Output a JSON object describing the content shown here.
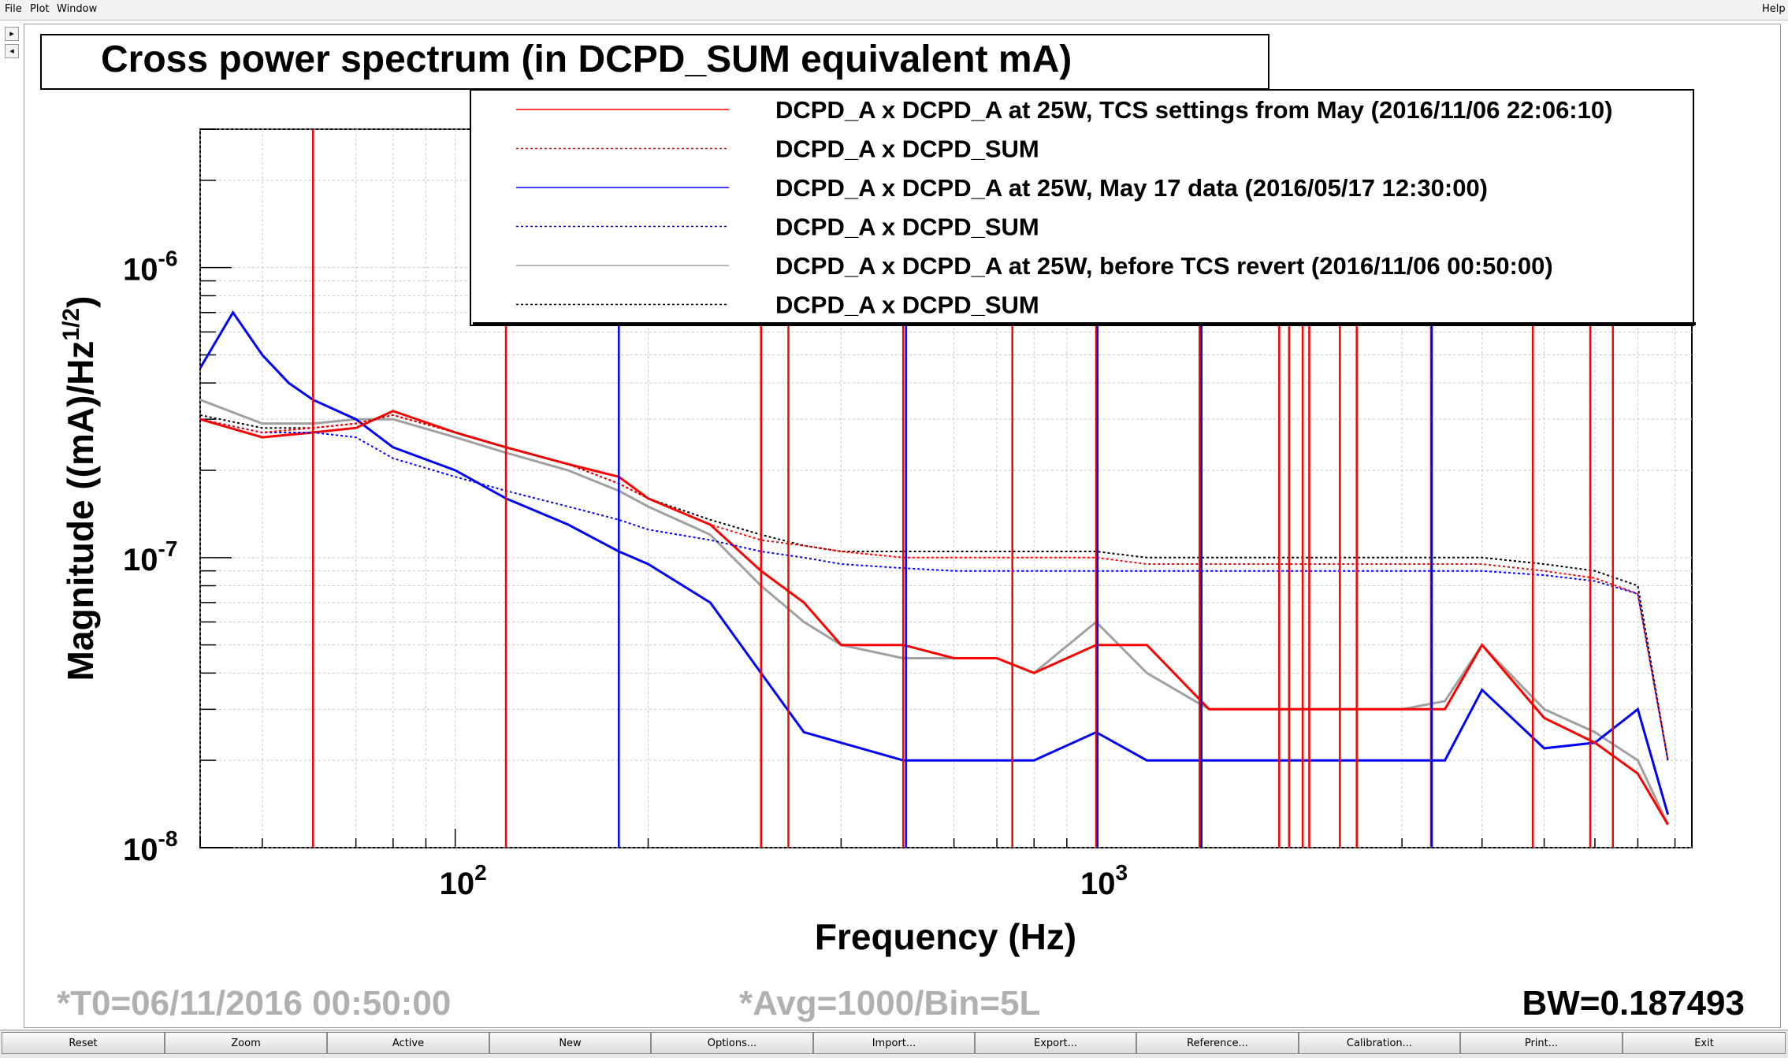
{
  "menubar": {
    "items": [
      "File",
      "Plot",
      "Window"
    ],
    "help": "Help"
  },
  "sidebar": {
    "arrow_right": "▸",
    "arrow_left": "◂"
  },
  "chart_data": {
    "type": "line",
    "title": "Cross power spectrum (in DCPD_SUM equivalent mA)",
    "xlabel": "Frequency (Hz)",
    "ylabel": "Magnitude ((mA)/Hz",
    "ylabel_sup": "1/2",
    "ylabel_end": ")",
    "x_scale": "log",
    "y_scale": "log",
    "xlim": [
      40,
      8500
    ],
    "ylim": [
      1e-08,
      3e-06
    ],
    "x_ticks": [
      {
        "value": 100,
        "base": "10",
        "exp": "2"
      },
      {
        "value": 1000,
        "base": "10",
        "exp": "3"
      }
    ],
    "y_ticks": [
      {
        "value": 1e-08,
        "base": "10",
        "exp": "-8"
      },
      {
        "value": 1e-07,
        "base": "10",
        "exp": "-7"
      },
      {
        "value": 1e-06,
        "base": "10",
        "exp": "-6"
      }
    ],
    "grid": true,
    "legend_position": "top-right",
    "series": [
      {
        "name": "DCPD_A x DCPD_A at 25W, TCS settings from May (2016/11/06 22:06:10)",
        "color": "#ff0000",
        "style": "solid",
        "x": [
          40,
          50,
          60,
          70,
          80,
          100,
          120,
          150,
          180,
          200,
          250,
          300,
          350,
          400,
          500,
          600,
          700,
          800,
          1000,
          1200,
          1500,
          2000,
          2500,
          3000,
          3500,
          4000,
          5000,
          6000,
          7000,
          7800
        ],
        "y": [
          3e-07,
          2.6e-07,
          2.7e-07,
          2.8e-07,
          3.2e-07,
          2.7e-07,
          2.4e-07,
          2.1e-07,
          1.9e-07,
          1.6e-07,
          1.3e-07,
          9e-08,
          7e-08,
          5e-08,
          5e-08,
          4.5e-08,
          4.5e-08,
          4e-08,
          5e-08,
          5e-08,
          3e-08,
          3e-08,
          3e-08,
          3e-08,
          3e-08,
          5e-08,
          2.8e-08,
          2.3e-08,
          1.8e-08,
          1.2e-08
        ]
      },
      {
        "name": "DCPD_A x DCPD_SUM",
        "color": "#ff0000",
        "style": "dotted",
        "x": [
          40,
          50,
          60,
          70,
          80,
          100,
          120,
          150,
          180,
          200,
          250,
          300,
          350,
          400,
          500,
          600,
          700,
          800,
          1000,
          1200,
          1500,
          2000,
          2500,
          3000,
          3500,
          4000,
          5000,
          6000,
          7000,
          7800
        ],
        "y": [
          3e-07,
          2.7e-07,
          2.8e-07,
          2.9e-07,
          3.1e-07,
          2.7e-07,
          2.4e-07,
          2.1e-07,
          1.8e-07,
          1.6e-07,
          1.3e-07,
          1.15e-07,
          1.1e-07,
          1.05e-07,
          1e-07,
          1e-07,
          1e-07,
          1e-07,
          1e-07,
          9.5e-08,
          9.5e-08,
          9.5e-08,
          9.5e-08,
          9.5e-08,
          9.5e-08,
          9.5e-08,
          9e-08,
          8.5e-08,
          7.5e-08,
          2e-08
        ]
      },
      {
        "name": "DCPD_A x DCPD_A at 25W, May 17 data (2016/05/17 12:30:00)",
        "color": "#0000ff",
        "style": "solid",
        "x": [
          40,
          45,
          50,
          55,
          60,
          70,
          80,
          100,
          120,
          150,
          180,
          200,
          250,
          300,
          350,
          400,
          500,
          600,
          700,
          800,
          1000,
          1200,
          1500,
          2000,
          2500,
          3000,
          3500,
          4000,
          5000,
          6000,
          7000,
          7800
        ],
        "y": [
          4.5e-07,
          7e-07,
          5e-07,
          4e-07,
          3.5e-07,
          3e-07,
          2.4e-07,
          2e-07,
          1.6e-07,
          1.3e-07,
          1.05e-07,
          9.5e-08,
          7e-08,
          4e-08,
          2.5e-08,
          2.3e-08,
          2e-08,
          2e-08,
          2e-08,
          2e-08,
          2.5e-08,
          2e-08,
          2e-08,
          2e-08,
          2e-08,
          2e-08,
          2e-08,
          3.5e-08,
          2.2e-08,
          2.3e-08,
          3e-08,
          1.3e-08
        ]
      },
      {
        "name": "DCPD_A x DCPD_SUM",
        "color": "#0000ff",
        "style": "dotted",
        "x": [
          40,
          50,
          60,
          70,
          80,
          100,
          120,
          150,
          180,
          200,
          250,
          300,
          350,
          400,
          500,
          600,
          700,
          800,
          1000,
          1200,
          1500,
          2000,
          2500,
          3000,
          3500,
          4000,
          5000,
          6000,
          7000,
          7800
        ],
        "y": [
          3e-07,
          2.7e-07,
          2.7e-07,
          2.6e-07,
          2.2e-07,
          1.9e-07,
          1.7e-07,
          1.5e-07,
          1.35e-07,
          1.25e-07,
          1.15e-07,
          1.05e-07,
          1e-07,
          9.5e-08,
          9.2e-08,
          9e-08,
          9e-08,
          9e-08,
          9e-08,
          9e-08,
          9e-08,
          9e-08,
          9e-08,
          9e-08,
          9e-08,
          9e-08,
          8.7e-08,
          8.3e-08,
          7.5e-08,
          2e-08
        ]
      },
      {
        "name": "DCPD_A x DCPD_A at 25W, before TCS revert (2016/11/06 00:50:00)",
        "color": "#a0a0a0",
        "style": "solid",
        "x": [
          40,
          50,
          60,
          70,
          80,
          100,
          120,
          150,
          180,
          200,
          250,
          300,
          350,
          400,
          500,
          600,
          700,
          800,
          1000,
          1200,
          1500,
          2000,
          2500,
          3000,
          3500,
          4000,
          5000,
          6000,
          7000,
          7800
        ],
        "y": [
          3.5e-07,
          2.9e-07,
          2.9e-07,
          3e-07,
          3e-07,
          2.6e-07,
          2.3e-07,
          2e-07,
          1.7e-07,
          1.5e-07,
          1.2e-07,
          8e-08,
          6e-08,
          5e-08,
          4.5e-08,
          4.5e-08,
          4.5e-08,
          4e-08,
          6e-08,
          4e-08,
          3e-08,
          3e-08,
          3e-08,
          3e-08,
          3.2e-08,
          5e-08,
          3e-08,
          2.5e-08,
          2e-08,
          1.2e-08
        ]
      },
      {
        "name": "DCPD_A x DCPD_SUM",
        "color": "#000000",
        "style": "dotted",
        "x": [
          40,
          50,
          60,
          70,
          80,
          100,
          120,
          150,
          180,
          200,
          250,
          300,
          350,
          400,
          500,
          600,
          700,
          800,
          1000,
          1200,
          1500,
          2000,
          2500,
          3000,
          3500,
          4000,
          5000,
          6000,
          7000,
          7800
        ],
        "y": [
          3.1e-07,
          2.8e-07,
          2.8e-07,
          2.9e-07,
          3.1e-07,
          2.7e-07,
          2.4e-07,
          2.1e-07,
          1.8e-07,
          1.6e-07,
          1.35e-07,
          1.2e-07,
          1.1e-07,
          1.05e-07,
          1.05e-07,
          1.05e-07,
          1.05e-07,
          1.05e-07,
          1.05e-07,
          1e-07,
          1e-07,
          1e-07,
          1e-07,
          1e-07,
          1e-07,
          1e-07,
          9.5e-08,
          9e-08,
          8e-08,
          2e-08
        ]
      }
    ],
    "lines": [
      {
        "x": 60,
        "color": "#ff0000"
      },
      {
        "x": 120,
        "color": "#ff0000"
      },
      {
        "x": 180,
        "color": "#0000ff"
      },
      {
        "x": 300,
        "color": "#ff0000"
      },
      {
        "x": 331,
        "color": "#ff0000"
      },
      {
        "x": 500,
        "color": "#ff0000"
      },
      {
        "x": 505,
        "color": "#0000ff"
      },
      {
        "x": 740,
        "color": "#ff0000"
      },
      {
        "x": 1000,
        "color": "#ff0000"
      },
      {
        "x": 1005,
        "color": "#0000ff"
      },
      {
        "x": 1450,
        "color": "#ff0000"
      },
      {
        "x": 1460,
        "color": "#0000ff"
      },
      {
        "x": 1930,
        "color": "#ff0000"
      },
      {
        "x": 2000,
        "color": "#ff0000"
      },
      {
        "x": 2100,
        "color": "#ff0000"
      },
      {
        "x": 2150,
        "color": "#ff0000"
      },
      {
        "x": 2400,
        "color": "#ff0000"
      },
      {
        "x": 2550,
        "color": "#ff0000"
      },
      {
        "x": 3330,
        "color": "#ff0000"
      },
      {
        "x": 3340,
        "color": "#0000ff"
      },
      {
        "x": 4800,
        "color": "#ff0000"
      },
      {
        "x": 5900,
        "color": "#ff0000"
      },
      {
        "x": 6400,
        "color": "#ff0000"
      }
    ],
    "footer": {
      "t0": "*T0=06/11/2016 00:50:00",
      "avg": "*Avg=1000/Bin=5L",
      "bw": "BW=0.187493"
    }
  },
  "buttons": [
    "Reset",
    "Zoom",
    "Active",
    "New",
    "Options...",
    "Import...",
    "Export...",
    "Reference...",
    "Calibration...",
    "Print...",
    "Exit"
  ]
}
